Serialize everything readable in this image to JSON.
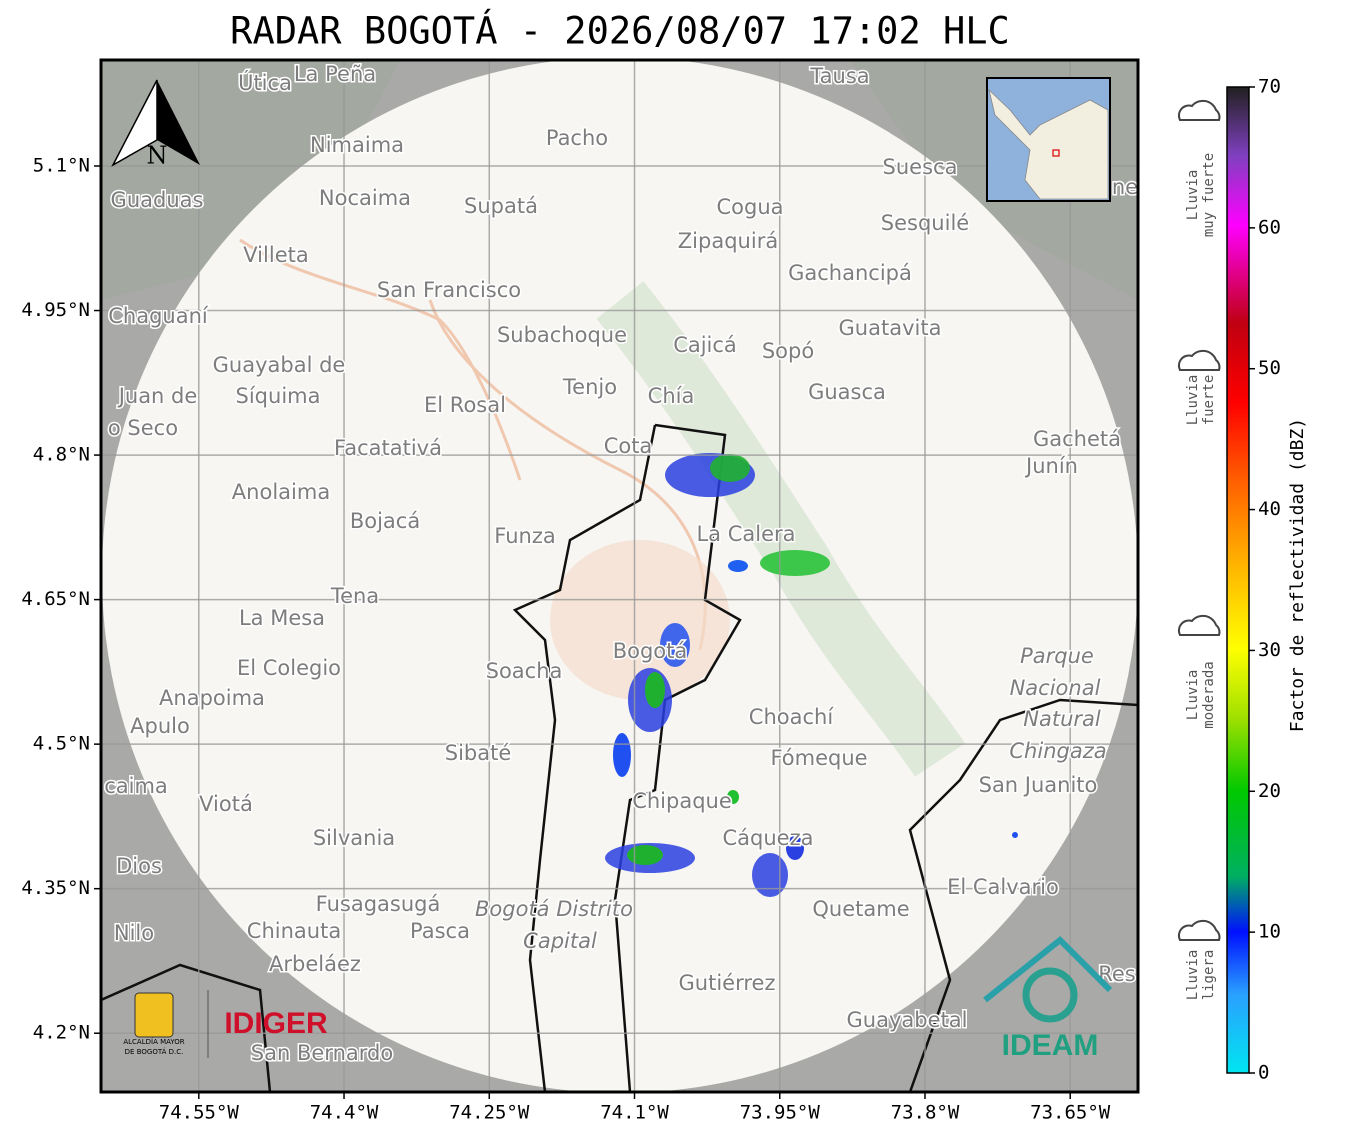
{
  "title": "RADAR BOGOTÁ - 2026/08/07 17:02 HLC",
  "map": {
    "xlim": [
      -74.651,
      -73.58
    ],
    "ylim": [
      4.139,
      5.21
    ],
    "xticks": [
      {
        "value": -74.55,
        "label": "74.55°W"
      },
      {
        "value": -74.4,
        "label": "74.4°W"
      },
      {
        "value": -74.25,
        "label": "74.25°W"
      },
      {
        "value": -74.1,
        "label": "74.1°W"
      },
      {
        "value": -73.95,
        "label": "73.95°W"
      },
      {
        "value": -73.8,
        "label": "73.8°W"
      },
      {
        "value": -73.65,
        "label": "73.65°W"
      }
    ],
    "yticks": [
      {
        "value": 4.2,
        "label": "4.2°N"
      },
      {
        "value": 4.35,
        "label": "4.35°N"
      },
      {
        "value": 4.5,
        "label": "4.5°N"
      },
      {
        "value": 4.65,
        "label": "4.65°N"
      },
      {
        "value": 4.8,
        "label": "4.8°N"
      },
      {
        "value": 4.95,
        "label": "4.95°N"
      },
      {
        "value": 5.1,
        "label": "5.1°N"
      }
    ],
    "grid": true,
    "north_label": "N",
    "places": [
      "Útica",
      "La Peña",
      "Tausa",
      "Pacho",
      "Nimaima",
      "Guaduas",
      "Nocaima",
      "Supatá",
      "Cogua",
      "Suesca",
      "Sesquilé",
      "Zipaquirá",
      "Villeta",
      "Gachancipá",
      "San Francisco",
      "Chaguaní",
      "Subachoque",
      "Cajicá",
      "Sopó",
      "Guatavita",
      "Guayabal de",
      "Síquima",
      "Juan de",
      "o Seco",
      "Tenjo",
      "Chía",
      "Guasca",
      "El Rosal",
      "Facatativá",
      "Gachetá",
      "Junín",
      "Cota",
      "Anolaima",
      "Bojacá",
      "Funza",
      "La Calera",
      "Tena",
      "La Mesa",
      "Bogotá",
      "Soacha",
      "El Colegio",
      "Parque",
      "Nacional",
      "Natural",
      "Chingaza",
      "Anapoima",
      "Apulo",
      "Choachí",
      "Sibaté",
      "Fómeque",
      "San Juanito",
      "caima",
      "Viotá",
      "Chipaque",
      "Silvania",
      "Cáqueza",
      "Dios",
      "El Calvario",
      "Fusagasugá",
      "Bogotá Distrito",
      "Capital",
      "Quetame",
      "Nilo",
      "Chinauta",
      "Pasca",
      "Arbeláez",
      "Gutiérrez",
      "Res",
      "Guayabetal",
      "San Bernardo",
      "ne"
    ]
  },
  "colorbar": {
    "label": "Factor de reflectividad (dBZ)",
    "lim": [
      0,
      70
    ],
    "ticks": [
      0,
      10,
      20,
      30,
      40,
      50,
      60,
      70
    ],
    "categories": [
      [
        "Lluvia",
        "muy fuerte"
      ],
      [
        "Lluvia",
        "fuerte"
      ],
      [
        "Lluvia",
        "moderada"
      ],
      [
        "Lluvia",
        "ligera"
      ]
    ]
  },
  "logos": {
    "alcaldia": [
      "ALCALDÍA MAYOR",
      "DE BOGOTÁ D.C."
    ],
    "idiger": "IDIGER",
    "ideam": "IDEAM"
  }
}
